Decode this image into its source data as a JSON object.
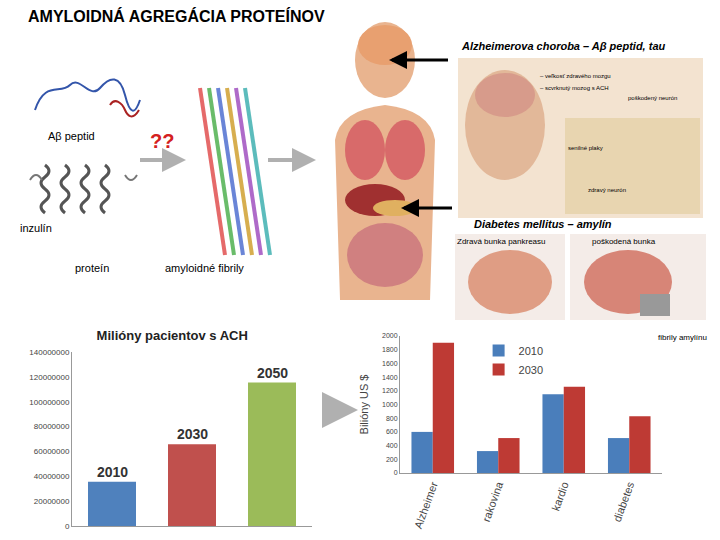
{
  "diagram": {
    "title": "AMYLOIDNÁ AGREGÁCIA PROTEÍNOV",
    "alzheimer": "Alzheimerova choroba – Aβ peptid, tau",
    "diabetes": "Diabetes mellitus – amylín",
    "abeta": "Aβ peptid",
    "question": "??",
    "insulin": "inzulín",
    "protein": "proteín",
    "fibrils": "amyloidné fibrily",
    "brain_labels": [
      "– veľkosť zdravého mozgu",
      "– scvrknutý mozog s ACH",
      "poškodený neurón",
      "senilné plaky",
      "zdravý neurón"
    ],
    "pancreas_labels": [
      "Zdravá bunka pankreasu",
      "poškodená bunka",
      "fibrily amylínu"
    ]
  },
  "chart_data": [
    {
      "type": "bar",
      "title": "Milióny pacientov s ACH",
      "categories": [
        "2010",
        "2030",
        "2050"
      ],
      "values": [
        35600000,
        65700000,
        115400000
      ],
      "colors": [
        "#4f81bd",
        "#c0504d",
        "#9bbb59"
      ],
      "ylim": [
        0,
        140000000
      ],
      "yticks": [
        0,
        20000000,
        40000000,
        60000000,
        80000000,
        100000000,
        120000000,
        140000000
      ],
      "grid": false,
      "tick_labels": "y"
    },
    {
      "type": "bar",
      "y_label": "Bilióny US $",
      "categories": [
        "Alzheimer",
        "rakovina",
        "kardio",
        "diabetes"
      ],
      "series": [
        {
          "name": "2010",
          "color": "#4a7ebb",
          "values": [
            600,
            320,
            1150,
            510
          ]
        },
        {
          "name": "2030",
          "color": "#be3a34",
          "values": [
            1900,
            510,
            1260,
            830
          ]
        }
      ],
      "ylim": [
        0,
        2000
      ],
      "yticks": [
        0,
        200,
        400,
        600,
        800,
        1000,
        1200,
        1400,
        1600,
        1800,
        2000
      ],
      "grid": false,
      "legend": "top-left"
    }
  ]
}
